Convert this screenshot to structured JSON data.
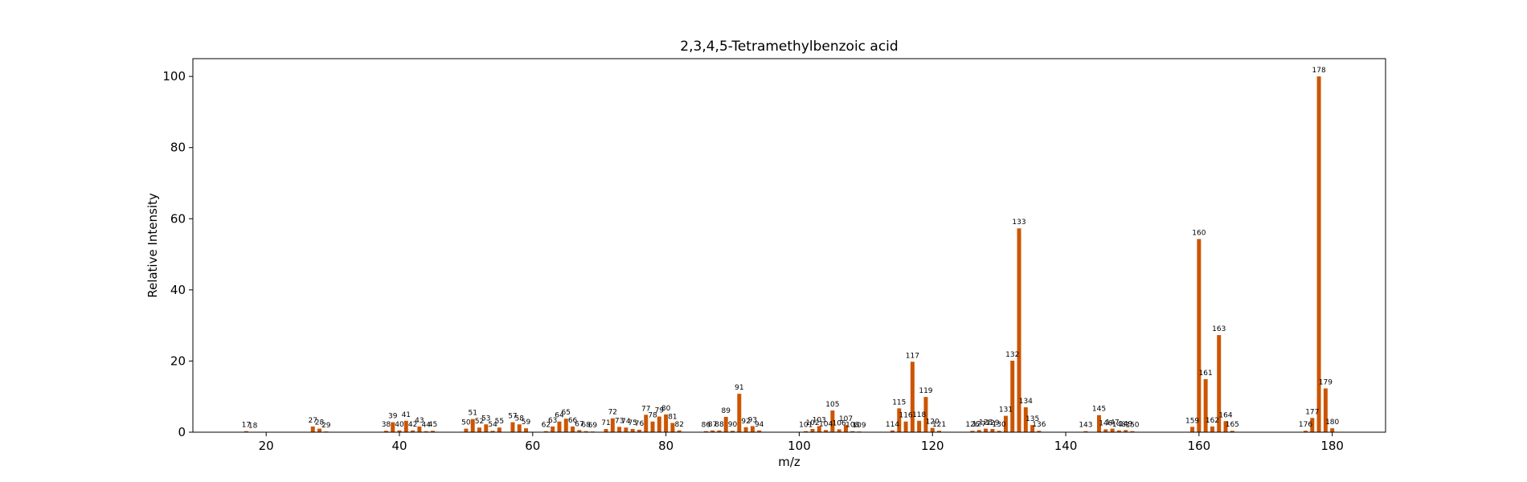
{
  "chart_data": {
    "type": "bar",
    "title": "2,3,4,5-Tetramethylbenzoic acid",
    "xlabel": "m/z",
    "ylabel": "Relative Intensity",
    "xlim": [
      9,
      188
    ],
    "ylim": [
      0,
      105
    ],
    "xticks": [
      20,
      40,
      60,
      80,
      100,
      120,
      140,
      160,
      180
    ],
    "yticks": [
      0,
      20,
      40,
      60,
      80,
      100
    ],
    "grid": false,
    "bar_color": "#cc5500",
    "x": [
      17,
      18,
      27,
      28,
      29,
      38,
      39,
      40,
      41,
      42,
      43,
      44,
      45,
      50,
      51,
      52,
      53,
      54,
      55,
      57,
      58,
      59,
      62,
      63,
      64,
      65,
      66,
      67,
      68,
      69,
      71,
      72,
      73,
      74,
      75,
      76,
      77,
      78,
      79,
      80,
      81,
      82,
      86,
      87,
      88,
      89,
      90,
      91,
      92,
      93,
      94,
      101,
      102,
      103,
      104,
      105,
      106,
      107,
      108,
      109,
      114,
      115,
      116,
      117,
      118,
      119,
      120,
      121,
      126,
      127,
      128,
      129,
      130,
      131,
      132,
      133,
      134,
      135,
      136,
      143,
      145,
      146,
      147,
      148,
      149,
      150,
      159,
      160,
      161,
      162,
      163,
      164,
      165,
      176,
      177,
      178,
      179,
      180
    ],
    "values": [
      0.3,
      0.1,
      1.6,
      1.0,
      0.2,
      0.4,
      2.8,
      0.5,
      3.2,
      0.5,
      1.6,
      0.3,
      0.4,
      1.0,
      3.7,
      1.3,
      2.2,
      0.4,
      1.3,
      2.8,
      2.2,
      1.1,
      0.3,
      1.6,
      3.0,
      3.8,
      1.6,
      0.6,
      0.3,
      0.2,
      0.9,
      3.9,
      1.5,
      1.3,
      0.9,
      0.7,
      4.9,
      3.0,
      4.4,
      5.0,
      2.6,
      0.5,
      0.3,
      0.5,
      0.5,
      4.3,
      0.4,
      10.8,
      1.4,
      1.7,
      0.5,
      0.3,
      0.9,
      1.7,
      0.6,
      6.1,
      0.8,
      2.0,
      0.3,
      0.2,
      0.5,
      6.7,
      3.0,
      19.8,
      3.2,
      9.9,
      1.2,
      0.4,
      0.4,
      0.6,
      1.0,
      0.9,
      0.4,
      4.6,
      20.1,
      57.3,
      7.0,
      2.0,
      0.4,
      0.3,
      4.8,
      0.8,
      1.0,
      0.5,
      0.6,
      0.3,
      1.5,
      54.3,
      14.9,
      1.6,
      27.3,
      3.1,
      0.4,
      0.4,
      4.0,
      100,
      12.3,
      1.1
    ],
    "labels": [
      "17",
      "18",
      "27",
      "28",
      "29",
      "38",
      "39",
      "40",
      "41",
      "42",
      "43",
      "44",
      "45",
      "50",
      "51",
      "52",
      "53",
      "54",
      "55",
      "57",
      "58",
      "59",
      "62",
      "63",
      "64",
      "65",
      "66",
      "67",
      "68",
      "69",
      "71",
      "72",
      "73",
      "74",
      "75",
      "76",
      "77",
      "78",
      "79",
      "80",
      "81",
      "82",
      "86",
      "87",
      "88",
      "89",
      "90",
      "91",
      "92",
      "93",
      "94",
      "101",
      "102",
      "103",
      "104",
      "105",
      "106",
      "107",
      "108",
      "109",
      "114",
      "115",
      "116",
      "117",
      "118",
      "119",
      "120",
      "121",
      "126",
      "127",
      "128",
      "129",
      "130",
      "131",
      "132",
      "133",
      "134",
      "135",
      "136",
      "143",
      "145",
      "146",
      "147",
      "148",
      "149",
      "150",
      "159",
      "160",
      "161",
      "162",
      "163",
      "164",
      "165",
      "176",
      "177",
      "178",
      "179",
      "180"
    ]
  }
}
